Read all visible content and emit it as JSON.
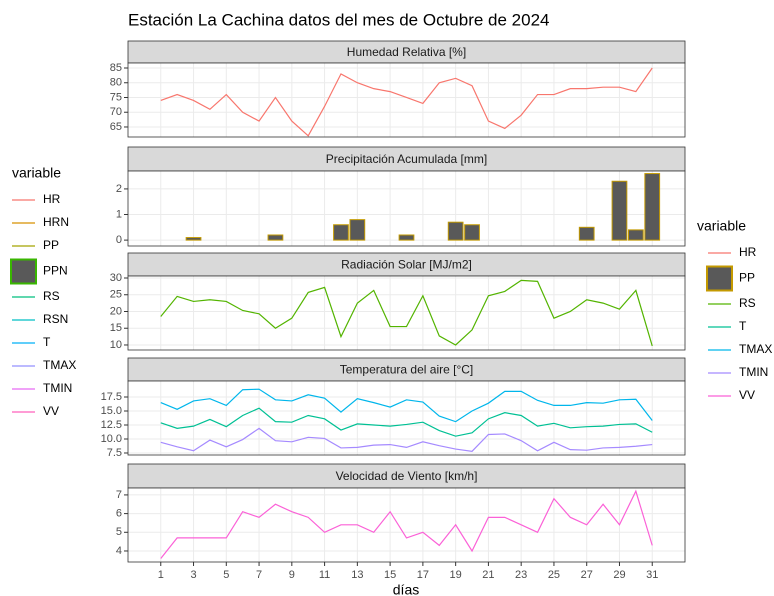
{
  "title": "Estación La Cachina datos del mes de Octubre de 2024",
  "x_label": "días",
  "legends": [
    {
      "title": "variable",
      "entries": [
        {
          "name": "HR",
          "color": "#F8766D",
          "key": "line"
        },
        {
          "name": "HRN",
          "color": "#D89000",
          "key": "line"
        },
        {
          "name": "PP",
          "color": "#A3A500",
          "key": "line"
        },
        {
          "name": "PPN",
          "color": "#39B600",
          "fill": "#595959",
          "key": "bar"
        },
        {
          "name": "RS",
          "color": "#00BF7D",
          "key": "line"
        },
        {
          "name": "RSN",
          "color": "#00BFC4",
          "key": "line"
        },
        {
          "name": "T",
          "color": "#00B0F6",
          "key": "line"
        },
        {
          "name": "TMAX",
          "color": "#9590FF",
          "key": "line"
        },
        {
          "name": "TMIN",
          "color": "#E76BF3",
          "key": "line"
        },
        {
          "name": "VV",
          "color": "#FF62BC",
          "key": "line"
        }
      ]
    },
    {
      "title": "variable",
      "entries": [
        {
          "name": "HR",
          "color": "#F8766D",
          "key": "line"
        },
        {
          "name": "PP",
          "color": "#C49A00",
          "fill": "#595959",
          "key": "bar"
        },
        {
          "name": "RS",
          "color": "#53B400",
          "key": "line"
        },
        {
          "name": "T",
          "color": "#00C094",
          "key": "line"
        },
        {
          "name": "TMAX",
          "color": "#00B6EB",
          "key": "line"
        },
        {
          "name": "TMIN",
          "color": "#A58AFF",
          "key": "line"
        },
        {
          "name": "VV",
          "color": "#FB61D7",
          "key": "line"
        }
      ]
    }
  ],
  "chart_data": [
    {
      "type": "line",
      "title": "Humedad Relativa [%]",
      "x": [
        1,
        2,
        3,
        4,
        5,
        6,
        7,
        8,
        9,
        10,
        11,
        12,
        13,
        14,
        15,
        16,
        17,
        18,
        19,
        20,
        21,
        22,
        23,
        24,
        25,
        26,
        27,
        28,
        29,
        30,
        31
      ],
      "series": [
        {
          "color": "#F8766D",
          "values": [
            74,
            76,
            74,
            71,
            76,
            70,
            67,
            75,
            67,
            62,
            72,
            83,
            80,
            78,
            77,
            75,
            73,
            80,
            81.5,
            79,
            67,
            64.5,
            69,
            76,
            76,
            78,
            78,
            78.5,
            78.5,
            77,
            85
          ]
        }
      ],
      "xlim": [
        -1,
        33
      ],
      "xticks": [
        1,
        3,
        5,
        7,
        9,
        11,
        13,
        15,
        17,
        19,
        21,
        23,
        25,
        27,
        29,
        31
      ],
      "ylim": [
        61.6,
        86.7
      ],
      "yticks": [
        65,
        70,
        75,
        80,
        85
      ],
      "grid": true
    },
    {
      "type": "bar",
      "title": "Precipitación Acumulada [mm]",
      "x": [
        1,
        2,
        3,
        4,
        5,
        6,
        7,
        8,
        9,
        10,
        11,
        12,
        13,
        14,
        15,
        16,
        17,
        18,
        19,
        20,
        21,
        22,
        23,
        24,
        25,
        26,
        27,
        28,
        29,
        30,
        31
      ],
      "series": [
        {
          "color": "#C49A00",
          "fill": "#595959",
          "values": [
            0,
            0,
            0.1,
            0,
            0,
            0,
            0,
            0.2,
            0,
            0,
            0,
            0.6,
            0.8,
            0,
            0,
            0.2,
            0,
            0,
            0.7,
            0.6,
            0,
            0,
            0,
            0,
            0,
            0,
            0.5,
            0,
            2.3,
            0.4,
            2.6
          ]
        }
      ],
      "xlim": [
        -1,
        33
      ],
      "xticks": [
        1,
        3,
        5,
        7,
        9,
        11,
        13,
        15,
        17,
        19,
        21,
        23,
        25,
        27,
        29,
        31
      ],
      "ylim": [
        -0.23,
        2.7
      ],
      "yticks": [
        0,
        1,
        2
      ],
      "grid": true
    },
    {
      "type": "line",
      "title": "Radiación Solar [MJ/m2]",
      "x": [
        1,
        2,
        3,
        4,
        5,
        6,
        7,
        8,
        9,
        10,
        11,
        12,
        13,
        14,
        15,
        16,
        17,
        18,
        19,
        20,
        21,
        22,
        23,
        24,
        25,
        26,
        27,
        28,
        29,
        30,
        31
      ],
      "series": [
        {
          "color": "#53B400",
          "values": [
            18.5,
            24.5,
            23,
            23.5,
            23,
            20.3,
            19.3,
            15,
            18,
            25.7,
            27.2,
            12.5,
            22.5,
            26.3,
            15.5,
            15.5,
            24.7,
            12.7,
            10,
            14.5,
            24.7,
            26,
            29.3,
            29,
            18,
            20,
            23.5,
            22.5,
            20.7,
            26.3,
            9.7
          ]
        }
      ],
      "xlim": [
        -1,
        33
      ],
      "xticks": [
        1,
        3,
        5,
        7,
        9,
        11,
        13,
        15,
        17,
        19,
        21,
        23,
        25,
        27,
        29,
        31
      ],
      "ylim": [
        8.5,
        30.6
      ],
      "yticks": [
        10,
        15,
        20,
        25,
        30
      ],
      "grid": true
    },
    {
      "type": "line",
      "title": "Temperatura del aire [°C]",
      "x": [
        1,
        2,
        3,
        4,
        5,
        6,
        7,
        8,
        9,
        10,
        11,
        12,
        13,
        14,
        15,
        16,
        17,
        18,
        19,
        20,
        21,
        22,
        23,
        24,
        25,
        26,
        27,
        28,
        29,
        30,
        31
      ],
      "series": [
        {
          "color": "#00B6EB",
          "values": [
            16.5,
            15.3,
            16.8,
            17.2,
            16.0,
            18.8,
            18.9,
            17.0,
            16.8,
            17.9,
            17.3,
            14.8,
            17.2,
            16.5,
            15.7,
            17.0,
            16.6,
            14.1,
            13.1,
            15.0,
            16.4,
            18.5,
            18.5,
            16.9,
            16.0,
            16.0,
            16.5,
            16.4,
            17.0,
            17.1,
            13.3
          ]
        },
        {
          "color": "#00C094",
          "values": [
            12.9,
            11.9,
            12.3,
            13.5,
            12.2,
            14.2,
            15.5,
            13.1,
            13.0,
            14.2,
            13.6,
            11.6,
            12.7,
            12.5,
            12.3,
            12.6,
            13.0,
            11.5,
            10.5,
            11.1,
            13.6,
            14.7,
            14.2,
            12.3,
            12.8,
            12.0,
            12.2,
            12.3,
            12.6,
            12.7,
            11.2
          ]
        },
        {
          "color": "#A58AFF",
          "values": [
            9.4,
            8.6,
            7.9,
            9.8,
            8.6,
            9.9,
            11.9,
            9.7,
            9.5,
            10.3,
            10.1,
            8.4,
            8.5,
            8.9,
            9.0,
            8.5,
            9.5,
            8.8,
            8.2,
            7.8,
            10.8,
            10.9,
            9.7,
            7.9,
            9.4,
            8.1,
            8.0,
            8.4,
            8.5,
            8.7,
            9.0
          ]
        }
      ],
      "xlim": [
        -1,
        33
      ],
      "xticks": [
        1,
        3,
        5,
        7,
        9,
        11,
        13,
        15,
        17,
        19,
        21,
        23,
        25,
        27,
        29,
        31
      ],
      "ylim": [
        7.14,
        20.36
      ],
      "yticks": [
        7.5,
        {
          "value": 10,
          "label": "10.0"
        },
        12.5,
        {
          "value": 15,
          "label": "15.0"
        },
        17.5
      ],
      "grid": true
    },
    {
      "type": "line",
      "title": "Velocidad de Viento [km/h]",
      "x": [
        1,
        2,
        3,
        4,
        5,
        6,
        7,
        8,
        9,
        10,
        11,
        12,
        13,
        14,
        15,
        16,
        17,
        18,
        19,
        20,
        21,
        22,
        23,
        24,
        25,
        26,
        27,
        28,
        29,
        30,
        31
      ],
      "series": [
        {
          "color": "#FB61D7",
          "values": [
            3.6,
            4.7,
            4.7,
            4.7,
            4.7,
            6.1,
            5.8,
            6.5,
            6.1,
            5.8,
            5.0,
            5.4,
            5.4,
            5.0,
            6.1,
            4.7,
            5.0,
            4.3,
            5.4,
            4.0,
            5.8,
            5.8,
            5.4,
            5.0,
            6.8,
            5.8,
            5.4,
            6.5,
            5.4,
            7.2,
            4.3
          ]
        }
      ],
      "xlim": [
        -1,
        33
      ],
      "xticks": [
        1,
        3,
        5,
        7,
        9,
        11,
        13,
        15,
        17,
        19,
        21,
        23,
        25,
        27,
        29,
        31
      ],
      "ylim": [
        3.41,
        7.37
      ],
      "yticks": [
        4,
        5,
        6,
        7
      ],
      "grid": true
    }
  ]
}
